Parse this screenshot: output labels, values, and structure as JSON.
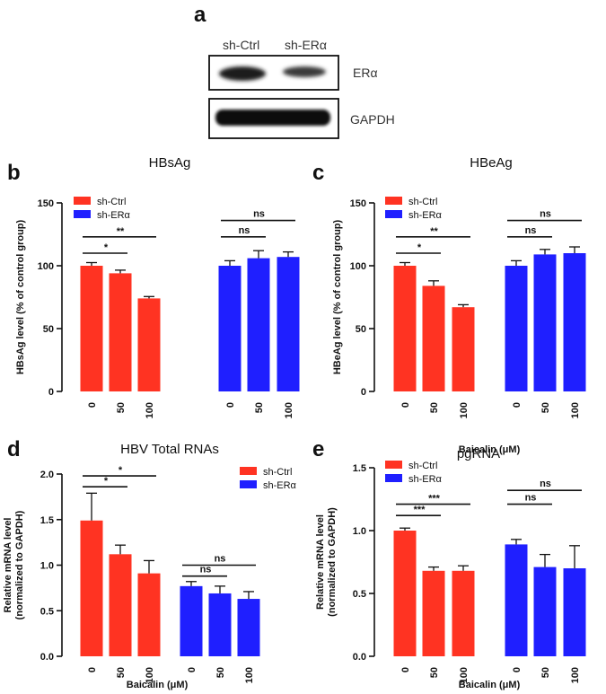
{
  "panel_a": {
    "letter": "a",
    "lanes": [
      "sh-Ctrl",
      "sh-ERα"
    ],
    "bands": [
      "ERα",
      "GAPDH"
    ]
  },
  "colors": {
    "ctrl": "#ff3322",
    "er": "#1f1fff"
  },
  "chart_data": [
    {
      "id": "b",
      "type": "bar",
      "title": "HBsAg",
      "ylabel": "HBsAg level (% of control group)",
      "xlabel": "",
      "ylim": [
        0,
        150
      ],
      "yticks": [
        "0",
        "50",
        "100",
        "150"
      ],
      "legend": [
        "sh-Ctrl",
        "sh-ERα"
      ],
      "legend_position": "top-left",
      "categories": [
        "0",
        "50",
        "100"
      ],
      "series": [
        {
          "name": "sh-Ctrl",
          "values": [
            100,
            94,
            74
          ],
          "errors": [
            2.5,
            2.5,
            1.5
          ]
        },
        {
          "name": "sh-ERα",
          "values": [
            100,
            106,
            107
          ],
          "errors": [
            4,
            6,
            4
          ]
        }
      ],
      "annotations": [
        {
          "series": 0,
          "from": 0,
          "to": 1,
          "label": "*",
          "y": 110
        },
        {
          "series": 0,
          "from": 0,
          "to": 2,
          "label": "**",
          "y": 123
        },
        {
          "series": 1,
          "from": 0,
          "to": 1,
          "label": "ns",
          "y": 123
        },
        {
          "series": 1,
          "from": 0,
          "to": 2,
          "label": "ns",
          "y": 136
        }
      ]
    },
    {
      "id": "c",
      "type": "bar",
      "title": "HBeAg",
      "ylabel": "HBeAg level (% of control group)",
      "xlabel": "Baicalin (μM)",
      "ylim": [
        0,
        150
      ],
      "yticks": [
        "0",
        "50",
        "100",
        "150"
      ],
      "legend": [
        "sh-Ctrl",
        "sh-ERα"
      ],
      "legend_position": "top-left",
      "categories": [
        "0",
        "50",
        "100"
      ],
      "series": [
        {
          "name": "sh-Ctrl",
          "values": [
            100,
            84,
            67
          ],
          "errors": [
            2.5,
            4,
            2
          ]
        },
        {
          "name": "sh-ERα",
          "values": [
            100,
            109,
            110
          ],
          "errors": [
            4,
            4,
            5
          ]
        }
      ],
      "annotations": [
        {
          "series": 0,
          "from": 0,
          "to": 1,
          "label": "*",
          "y": 110
        },
        {
          "series": 0,
          "from": 0,
          "to": 2,
          "label": "**",
          "y": 123
        },
        {
          "series": 1,
          "from": 0,
          "to": 1,
          "label": "ns",
          "y": 123
        },
        {
          "series": 1,
          "from": 0,
          "to": 2,
          "label": "ns",
          "y": 136
        }
      ]
    },
    {
      "id": "d",
      "type": "bar",
      "title": "HBV Total RNAs",
      "ylabel": "Relative mRNA level (normalized to GAPDH)",
      "ylabel_lines": [
        "Relative mRNA level",
        "(normalized to GAPDH)"
      ],
      "xlabel": "Baicalin (μM)",
      "ylim": [
        0,
        2.0
      ],
      "yticks": [
        "0.0",
        "0.5",
        "1.0",
        "1.5",
        "2.0"
      ],
      "legend": [
        "sh-Ctrl",
        "sh-ERα"
      ],
      "legend_position": "top-right",
      "categories": [
        "0",
        "50",
        "100"
      ],
      "series": [
        {
          "name": "sh-Ctrl",
          "values": [
            1.49,
            1.12,
            0.91
          ],
          "errors": [
            0.3,
            0.1,
            0.14
          ]
        },
        {
          "name": "sh-ERα",
          "values": [
            0.77,
            0.69,
            0.63
          ],
          "errors": [
            0.05,
            0.08,
            0.08
          ]
        }
      ],
      "annotations": [
        {
          "series": 0,
          "from": 0,
          "to": 1,
          "label": "*",
          "y": 1.86
        },
        {
          "series": 0,
          "from": 0,
          "to": 2,
          "label": "*",
          "y": 1.98
        },
        {
          "series": 1,
          "from": 0,
          "to": 1,
          "label": "ns",
          "y": 0.88
        },
        {
          "series": 1,
          "from": 0,
          "to": 2,
          "label": "ns",
          "y": 1.0
        }
      ]
    },
    {
      "id": "e",
      "type": "bar",
      "title": "pgRNA",
      "ylabel": "Relative mRNA level (normalized to GAPDH)",
      "ylabel_lines": [
        "Relative mRNA level",
        "(normalized to GAPDH)"
      ],
      "xlabel": "Baicalin (μM)",
      "ylim": [
        0,
        1.5
      ],
      "yticks": [
        "0.0",
        "0.5",
        "1.0",
        "1.5"
      ],
      "legend": [
        "sh-Ctrl",
        "sh-ERα"
      ],
      "legend_position": "top-left",
      "categories": [
        "0",
        "50",
        "100"
      ],
      "series": [
        {
          "name": "sh-Ctrl",
          "values": [
            1.0,
            0.68,
            0.68
          ],
          "errors": [
            0.02,
            0.03,
            0.04
          ]
        },
        {
          "name": "sh-ERα",
          "values": [
            0.89,
            0.71,
            0.7
          ],
          "errors": [
            0.04,
            0.1,
            0.18
          ]
        }
      ],
      "annotations": [
        {
          "series": 0,
          "from": 0,
          "to": 1,
          "label": "***",
          "y": 1.12
        },
        {
          "series": 0,
          "from": 0,
          "to": 2,
          "label": "***",
          "y": 1.21
        },
        {
          "series": 1,
          "from": 0,
          "to": 1,
          "label": "ns",
          "y": 1.21
        },
        {
          "series": 1,
          "from": 0,
          "to": 2,
          "label": "ns",
          "y": 1.32
        }
      ]
    }
  ]
}
